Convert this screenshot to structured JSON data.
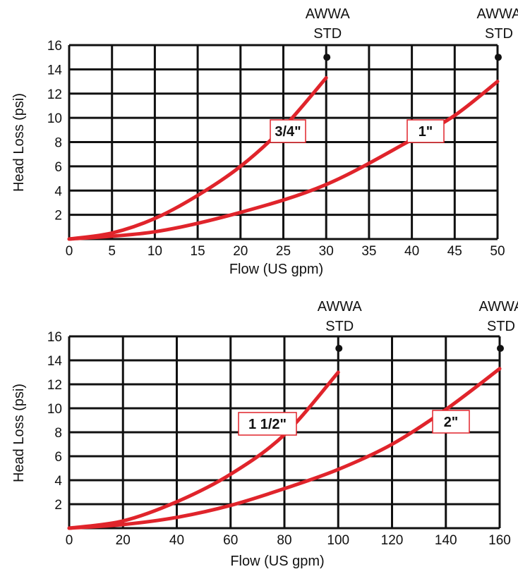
{
  "chart_data": [
    {
      "type": "line",
      "xlabel": "Flow (US gpm)",
      "ylabel": "Head Loss (psi)",
      "xlim": [
        0,
        50
      ],
      "ylim": [
        0,
        16
      ],
      "x_ticks": [
        "0",
        "5",
        "10",
        "15",
        "20",
        "25",
        "30",
        "35",
        "40",
        "45",
        "50"
      ],
      "y_ticks": [
        "2",
        "4",
        "6",
        "8",
        "10",
        "12",
        "14",
        "16"
      ],
      "grid": true,
      "line_color": "#e0242b",
      "series": [
        {
          "name": "3/4\"",
          "points": [
            [
              0,
              0
            ],
            [
              5,
              0.5
            ],
            [
              10,
              1.7
            ],
            [
              15,
              3.6
            ],
            [
              20,
              6.0
            ],
            [
              25,
              9.2
            ],
            [
              30,
              13.3
            ]
          ]
        },
        {
          "name": "1\"",
          "points": [
            [
              0,
              0
            ],
            [
              10,
              0.6
            ],
            [
              20,
              2.2
            ],
            [
              30,
              4.5
            ],
            [
              40,
              8.2
            ],
            [
              45,
              10.2
            ],
            [
              50,
              13.0
            ]
          ]
        }
      ],
      "markers": [
        {
          "label_line1": "AWWA",
          "label_line2": "STD",
          "x": 30,
          "y": 15
        },
        {
          "label_line1": "AWWA",
          "label_line2": "STD",
          "x": 50,
          "y": 15
        }
      ]
    },
    {
      "type": "line",
      "xlabel": "Flow (US gpm)",
      "ylabel": "Head Loss (psi)",
      "xlim": [
        0,
        160
      ],
      "ylim": [
        0,
        16
      ],
      "x_ticks": [
        "0",
        "20",
        "40",
        "60",
        "80",
        "100",
        "120",
        "140",
        "160"
      ],
      "y_ticks": [
        "2",
        "4",
        "6",
        "8",
        "10",
        "12",
        "14",
        "16"
      ],
      "grid": true,
      "line_color": "#e0242b",
      "series": [
        {
          "name": "1 1/2\"",
          "points": [
            [
              0,
              0
            ],
            [
              20,
              0.6
            ],
            [
              40,
              2.2
            ],
            [
              60,
              4.5
            ],
            [
              80,
              7.8
            ],
            [
              100,
              13.0
            ]
          ]
        },
        {
          "name": "2\"",
          "points": [
            [
              0,
              0
            ],
            [
              20,
              0.3
            ],
            [
              40,
              0.9
            ],
            [
              60,
              1.9
            ],
            [
              80,
              3.3
            ],
            [
              100,
              4.9
            ],
            [
              120,
              7.0
            ],
            [
              140,
              9.9
            ],
            [
              160,
              13.3
            ]
          ]
        }
      ],
      "markers": [
        {
          "label_line1": "AWWA",
          "label_line2": "STD",
          "x": 100,
          "y": 15
        },
        {
          "label_line1": "AWWA",
          "label_line2": "STD",
          "x": 160,
          "y": 15
        }
      ]
    }
  ]
}
